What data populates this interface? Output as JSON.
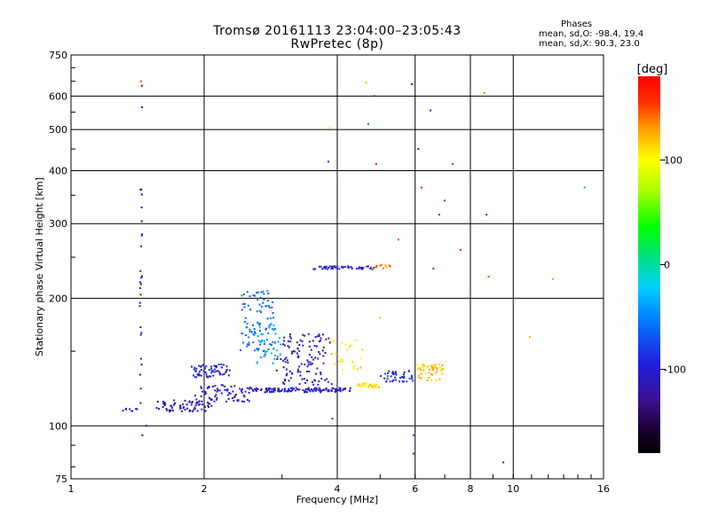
{
  "chart_data": {
    "type": "scatter",
    "title": "Tromsø 20161113 23:04:00–23:05:43",
    "subtitle": "RwPretec (8p)",
    "xlabel": "Frequency [MHz]",
    "ylabel": "Stationary phase Virtual Height [km]",
    "x_scale": "log",
    "y_scale": "log",
    "xlim": [
      1,
      16
    ],
    "ylim": [
      75,
      750
    ],
    "x_ticks": [
      1,
      2,
      4,
      6,
      8,
      10,
      16
    ],
    "x_tick_labels": [
      "1",
      "2",
      "4",
      "6",
      "8",
      "10",
      "16"
    ],
    "y_ticks": [
      75,
      100,
      200,
      300,
      400,
      500,
      600,
      750
    ],
    "y_tick_labels": [
      "75",
      "100",
      "200",
      "300",
      "400",
      "500",
      "600",
      "750"
    ],
    "grid": true,
    "colorbar": {
      "label": "[deg]",
      "range": [
        -180,
        180
      ],
      "ticks": [
        100,
        0,
        -100
      ],
      "tick_labels": [
        "100",
        "0",
        "-100"
      ]
    },
    "stats": {
      "header": "Phases",
      "line1": "mean, sd,O: -98.4, 19.4",
      "line2": "mean, sd,X:  90.3, 23.0"
    },
    "traces": [
      {
        "x_range": [
          1.3,
          1.42
        ],
        "y_range": [
          108,
          110
        ],
        "phase": -110,
        "count": 8
      },
      {
        "x_range": [
          1.43,
          1.45
        ],
        "y_range": [
          95,
          640
        ],
        "phase": -115,
        "count": 28
      },
      {
        "x_range": [
          1.55,
          2.1
        ],
        "y_range": [
          108,
          115
        ],
        "phase": -115,
        "count": 70
      },
      {
        "x_range": [
          1.85,
          2.3
        ],
        "y_range": [
          130,
          140
        ],
        "phase": -100,
        "count": 60
      },
      {
        "x_range": [
          1.9,
          2.6
        ],
        "y_range": [
          114,
          125
        ],
        "phase": -105,
        "count": 70
      },
      {
        "x_range": [
          2.5,
          4.4
        ],
        "y_range": [
          120,
          123
        ],
        "phase": -100,
        "count": 130
      },
      {
        "x_range": [
          4.4,
          5.0
        ],
        "y_range": [
          123,
          126
        ],
        "phase": 110,
        "count": 30
      },
      {
        "x_range": [
          5.0,
          6.0
        ],
        "y_range": [
          127,
          135
        ],
        "phase": -90,
        "count": 40
      },
      {
        "x_range": [
          6.0,
          7.0
        ],
        "y_range": [
          128,
          140
        ],
        "phase": 120,
        "count": 50
      },
      {
        "x_range": [
          2.4,
          2.9
        ],
        "y_range": [
          150,
          210
        ],
        "phase": -60,
        "count": 90
      },
      {
        "x_range": [
          2.6,
          3.0
        ],
        "y_range": [
          140,
          175
        ],
        "phase": -40,
        "count": 40
      },
      {
        "x_range": [
          2.9,
          3.9
        ],
        "y_range": [
          125,
          165
        ],
        "phase": -115,
        "count": 120
      },
      {
        "x_range": [
          3.8,
          4.6
        ],
        "y_range": [
          135,
          160
        ],
        "phase": 110,
        "count": 25
      },
      {
        "x_range": [
          3.5,
          4.9
        ],
        "y_range": [
          234,
          238
        ],
        "phase": -100,
        "count": 50
      },
      {
        "x_range": [
          4.8,
          5.3
        ],
        "y_range": [
          233,
          240
        ],
        "phase": 140,
        "count": 10
      }
    ],
    "points": [
      {
        "x": 1.44,
        "y": 650,
        "phase": 150
      },
      {
        "x": 3.85,
        "y": 505,
        "phase": 105
      },
      {
        "x": 4.65,
        "y": 645,
        "phase": 120
      },
      {
        "x": 4.85,
        "y": 600,
        "phase": -80
      },
      {
        "x": 4.7,
        "y": 515,
        "phase": -60
      },
      {
        "x": 5.9,
        "y": 640,
        "phase": -100
      },
      {
        "x": 6.5,
        "y": 555,
        "phase": -100
      },
      {
        "x": 8.6,
        "y": 610,
        "phase": 140
      },
      {
        "x": 3.82,
        "y": 420,
        "phase": -90
      },
      {
        "x": 4.9,
        "y": 415,
        "phase": 170
      },
      {
        "x": 6.1,
        "y": 450,
        "phase": -110
      },
      {
        "x": 7.3,
        "y": 415,
        "phase": 175
      },
      {
        "x": 6.2,
        "y": 365,
        "phase": 160
      },
      {
        "x": 6.8,
        "y": 315,
        "phase": -80
      },
      {
        "x": 7.0,
        "y": 340,
        "phase": 170
      },
      {
        "x": 8.7,
        "y": 315,
        "phase": -90
      },
      {
        "x": 14.5,
        "y": 365,
        "phase": -40
      },
      {
        "x": 5.5,
        "y": 275,
        "phase": 150
      },
      {
        "x": 6.6,
        "y": 235,
        "phase": -80
      },
      {
        "x": 7.6,
        "y": 260,
        "phase": 170
      },
      {
        "x": 8.8,
        "y": 225,
        "phase": 150
      },
      {
        "x": 12.3,
        "y": 222,
        "phase": 130
      },
      {
        "x": 10.9,
        "y": 162,
        "phase": 130
      },
      {
        "x": 5.0,
        "y": 180,
        "phase": 120
      },
      {
        "x": 9.5,
        "y": 82,
        "phase": -100
      },
      {
        "x": 5.95,
        "y": 86,
        "phase": -80
      },
      {
        "x": 5.95,
        "y": 95,
        "phase": -70
      },
      {
        "x": 3.9,
        "y": 104,
        "phase": -90
      },
      {
        "x": 1.48,
        "y": 100,
        "phase": -120
      },
      {
        "x": 1.45,
        "y": 95,
        "phase": -110
      }
    ]
  }
}
